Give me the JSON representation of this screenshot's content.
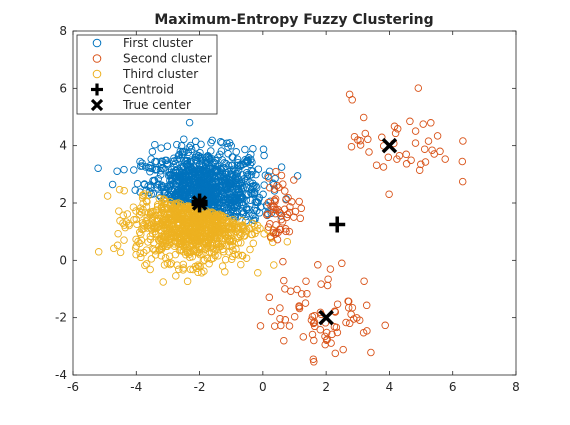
{
  "chart_data": {
    "type": "scatter",
    "title": "Maximum-Entropy Fuzzy Clustering",
    "xlabel": "",
    "ylabel": "",
    "xlim": [
      -6,
      8
    ],
    "ylim": [
      -4,
      8
    ],
    "xticks": [
      "-6",
      "-4",
      "-2",
      "0",
      "2",
      "4",
      "6",
      "8"
    ],
    "yticks": [
      "-4",
      "-2",
      "0",
      "2",
      "4",
      "6",
      "8"
    ],
    "grid": false,
    "legend_placement": "top-left",
    "colors": {
      "first": "#0072BD",
      "second": "#D95319",
      "third": "#EDB120",
      "marker": "#000000"
    },
    "legend": [
      {
        "label": "First cluster",
        "marker": "open-circle",
        "color": "#0072BD"
      },
      {
        "label": "Second cluster",
        "marker": "open-circle",
        "color": "#D95319"
      },
      {
        "label": "Third cluster",
        "marker": "open-circle",
        "color": "#EDB120"
      },
      {
        "label": "Centroid",
        "marker": "plus",
        "color": "#000000"
      },
      {
        "label": "True center",
        "marker": "x",
        "color": "#000000"
      }
    ],
    "centroids": [
      {
        "x": -2.0,
        "y": 2.05
      },
      {
        "x": -2.0,
        "y": 1.95
      },
      {
        "x": 2.35,
        "y": 1.25
      }
    ],
    "true_centers": [
      {
        "x": -2.0,
        "y": 2.0
      },
      {
        "x": 4.0,
        "y": 4.0
      },
      {
        "x": 2.0,
        "y": -2.0
      }
    ],
    "point_clouds": [
      {
        "series": "first",
        "center": [
          -1.9,
          2.35
        ],
        "spread": [
          0.95,
          0.75
        ],
        "count": 900,
        "constraint": "y > 1.95 - 0.3*(x+2) - 0.15"
      },
      {
        "series": "third",
        "center": [
          -2.2,
          1.35
        ],
        "spread": [
          0.9,
          0.7
        ],
        "count": 850,
        "constraint": "y <= 1.95 - 0.3*(x+2) - 0.15"
      },
      {
        "series": "second",
        "center": [
          4.4,
          4.1
        ],
        "spread": [
          0.8,
          0.8
        ],
        "count": 45
      },
      {
        "series": "second",
        "center": [
          1.9,
          -1.9
        ],
        "spread": [
          0.9,
          0.8
        ],
        "count": 75
      },
      {
        "series": "second",
        "center": [
          0.6,
          1.8
        ],
        "spread": [
          0.35,
          0.6
        ],
        "count": 55
      }
    ]
  }
}
